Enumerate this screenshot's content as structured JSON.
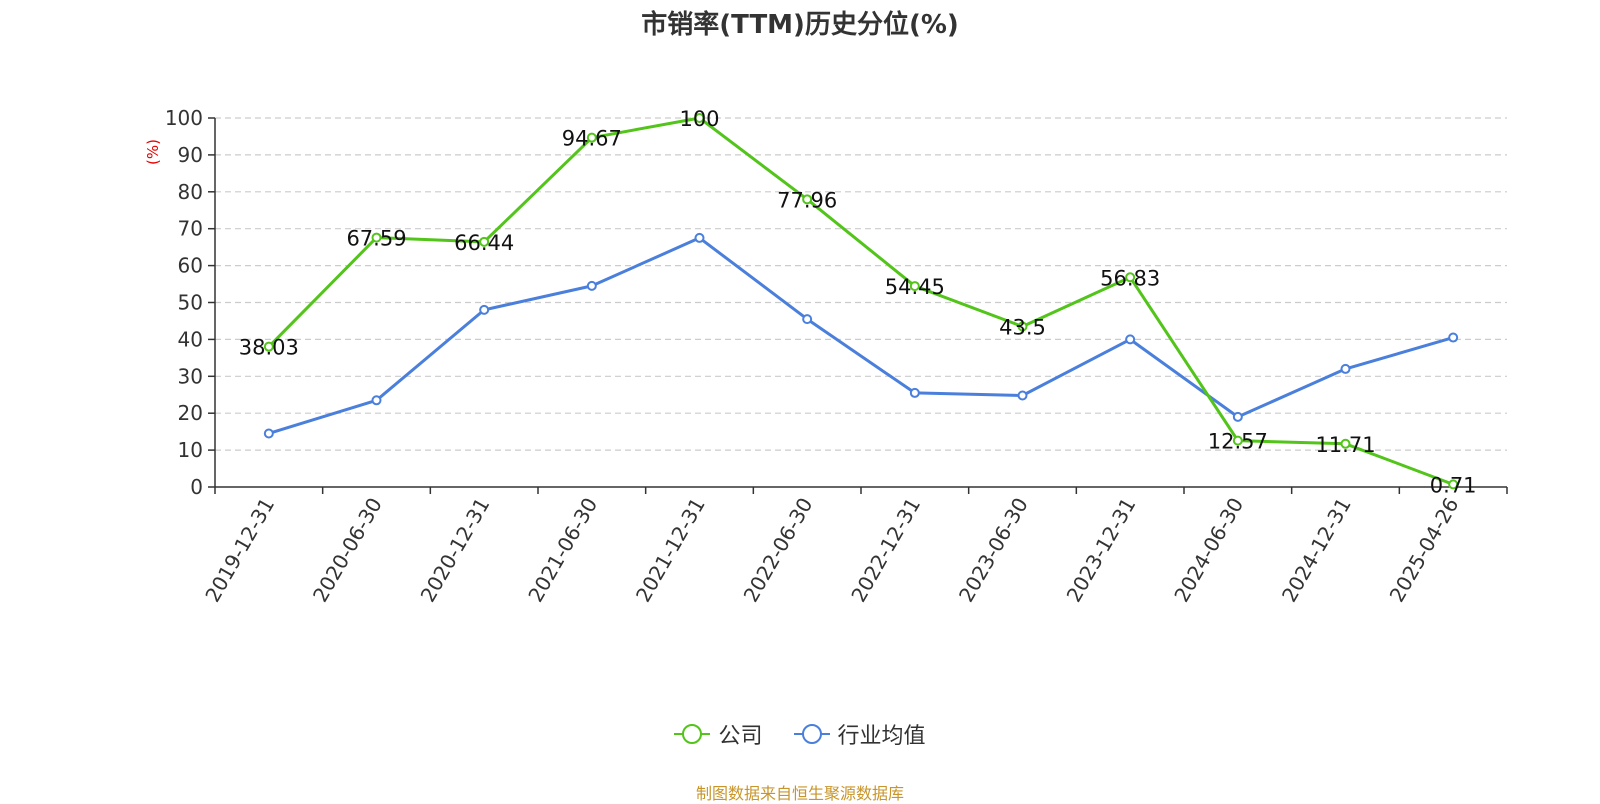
{
  "chart_data": {
    "type": "line",
    "title": "市销率(TTM)历史分位(%)",
    "ylabel": "(%)",
    "ylim": [
      0,
      100
    ],
    "yticks": [
      0,
      10,
      20,
      30,
      40,
      50,
      60,
      70,
      80,
      90,
      100
    ],
    "grid": true,
    "legend_position": "bottom",
    "categories": [
      "2019-12-31",
      "2020-06-30",
      "2020-12-31",
      "2021-06-30",
      "2021-12-31",
      "2022-06-30",
      "2022-12-31",
      "2023-06-30",
      "2023-12-31",
      "2024-06-30",
      "2024-12-31",
      "2025-04-26"
    ],
    "series": [
      {
        "name": "公司",
        "color": "#52c41a",
        "values": [
          38.03,
          67.59,
          66.44,
          94.67,
          100,
          77.96,
          54.45,
          43.5,
          56.83,
          12.57,
          11.71,
          0.71
        ],
        "labels": [
          "38.03",
          "67.59",
          "66.44",
          "94.67",
          "100",
          "77.96",
          "54.45",
          "43.5",
          "56.83",
          "12.57",
          "11.71",
          "0.71"
        ]
      },
      {
        "name": "行业均值",
        "color": "#4a7fdc",
        "values": [
          14.5,
          23.5,
          48,
          54.5,
          67.5,
          45.5,
          25.5,
          24.8,
          40,
          19,
          32,
          40.5
        ]
      }
    ],
    "source": "制图数据来自恒生聚源数据库"
  }
}
